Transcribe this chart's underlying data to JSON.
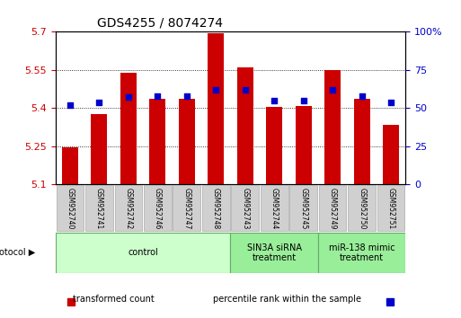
{
  "title": "GDS4255 / 8074274",
  "samples": [
    "GSM952740",
    "GSM952741",
    "GSM952742",
    "GSM952746",
    "GSM952747",
    "GSM952748",
    "GSM952743",
    "GSM952744",
    "GSM952745",
    "GSM952749",
    "GSM952750",
    "GSM952751"
  ],
  "transformed_count": [
    5.245,
    5.375,
    5.538,
    5.435,
    5.435,
    5.695,
    5.56,
    5.405,
    5.41,
    5.55,
    5.435,
    5.335
  ],
  "percentile_rank": [
    52,
    54,
    57,
    58,
    58,
    62,
    62,
    55,
    55,
    62,
    58,
    54
  ],
  "bar_bottom": 5.1,
  "ylim_left": [
    5.1,
    5.7
  ],
  "ylim_right": [
    0,
    100
  ],
  "yticks_left": [
    5.1,
    5.25,
    5.4,
    5.55,
    5.7
  ],
  "yticks_right": [
    0,
    25,
    50,
    75,
    100
  ],
  "ytick_labels_left": [
    "5.1",
    "5.25",
    "5.4",
    "5.55",
    "5.7"
  ],
  "ytick_labels_right": [
    "0",
    "25",
    "50",
    "75",
    "100%"
  ],
  "bar_color": "#cc0000",
  "dot_color": "#0000cc",
  "groups": [
    {
      "label": "control",
      "start": 0,
      "end": 6,
      "color": "#ccffcc",
      "edge_color": "#66aa66"
    },
    {
      "label": "SIN3A siRNA\ntreatment",
      "start": 6,
      "end": 9,
      "color": "#99ee99",
      "edge_color": "#66aa66"
    },
    {
      "label": "miR-138 mimic\ntreatment",
      "start": 9,
      "end": 12,
      "color": "#99ee99",
      "edge_color": "#66aa66"
    }
  ],
  "legend_items": [
    {
      "label": "transformed count",
      "color": "#cc0000",
      "marker": "s"
    },
    {
      "label": "percentile rank within the sample",
      "color": "#0000cc",
      "marker": "s"
    }
  ],
  "protocol_label": "protocol",
  "background_color": "#ffffff",
  "grid_color": "#000000",
  "tick_label_color_left": "#cc0000",
  "tick_label_color_right": "#0000cc"
}
